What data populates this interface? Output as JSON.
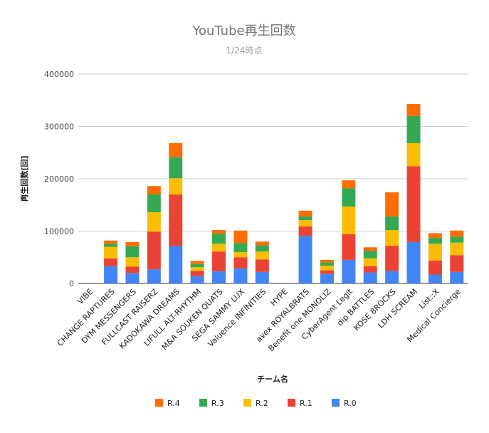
{
  "chart_data": {
    "type": "bar",
    "stacked": true,
    "title": "YouTube再生回数",
    "subtitle": "1/24時点",
    "xlabel": "チーム名",
    "ylabel": "再生回数[回]",
    "ylim": [
      0,
      400000
    ],
    "yticks": [
      0,
      100000,
      200000,
      300000,
      400000
    ],
    "grid": true,
    "legend_position": "bottom",
    "categories": [
      "VIBE",
      "CHANGE RAPTURES",
      "DYM MESSENGERS",
      "FULLCAST RAISERZ",
      "KADOKAWA DREAMS",
      "LIFULL ALT-RHYTHM",
      "M&A SOUKEN QUATS",
      "SEGA SAMMY LUX",
      "Valuence INFINITIES",
      "HYPE",
      "avex ROYALBRATS",
      "Benefit one MONOLIZ",
      "CyberAgent Legit",
      "dip BATTLES",
      "KOSE 8ROCKS",
      "LDH SCREAM",
      "List::X",
      "Medical Concierge"
    ],
    "series": [
      {
        "name": "R.0",
        "color": "#4285f4",
        "values": [
          0,
          33000,
          20000,
          27000,
          72000,
          14000,
          23000,
          29000,
          22000,
          0,
          91000,
          18000,
          45000,
          21000,
          24000,
          79000,
          17000,
          22000
        ]
      },
      {
        "name": "R.1",
        "color": "#ea4335",
        "values": [
          0,
          15000,
          12000,
          72000,
          98000,
          10000,
          38000,
          21000,
          24000,
          0,
          18000,
          7000,
          49000,
          12000,
          48000,
          145000,
          27000,
          32000
        ]
      },
      {
        "name": "R.2",
        "color": "#fbbc04",
        "values": [
          0,
          22000,
          18000,
          37000,
          31000,
          7000,
          15000,
          10000,
          15000,
          0,
          12000,
          9000,
          53000,
          15000,
          30000,
          44000,
          32000,
          24000
        ]
      },
      {
        "name": "R.3",
        "color": "#34a853",
        "values": [
          0,
          6000,
          21000,
          34000,
          40000,
          6000,
          19000,
          17000,
          12000,
          0,
          7000,
          6000,
          35000,
          14000,
          26000,
          52000,
          11000,
          11000
        ]
      },
      {
        "name": "R.4",
        "color": "#ff6d01",
        "values": [
          0,
          6000,
          8000,
          16000,
          27000,
          6000,
          7000,
          24000,
          7000,
          0,
          11000,
          5000,
          15000,
          7000,
          46000,
          23000,
          9000,
          12000
        ]
      }
    ]
  }
}
